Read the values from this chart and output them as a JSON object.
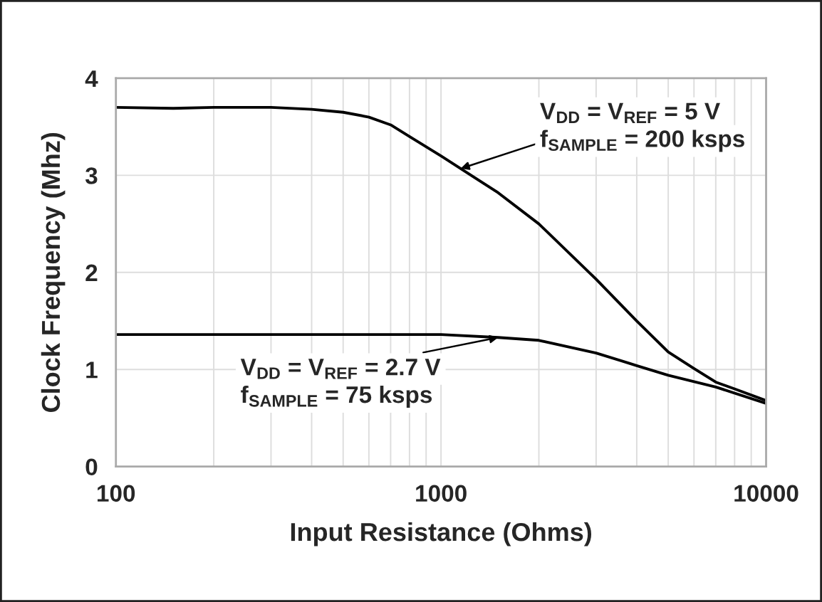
{
  "chart_data": {
    "type": "line",
    "xlabel": "Input Resistance (Ohms)",
    "ylabel": "Clock Frequency (Mhz)",
    "log": "x",
    "xlim": [
      100,
      10000
    ],
    "ylim": [
      0,
      4
    ],
    "xticks": [
      100,
      {
        "value": 200,
        "label": null
      },
      {
        "value": 300,
        "label": null
      },
      {
        "value": 400,
        "label": null
      },
      {
        "value": 500,
        "label": null
      },
      {
        "value": 600,
        "label": null
      },
      {
        "value": 700,
        "label": null
      },
      {
        "value": 800,
        "label": null
      },
      {
        "value": 900,
        "label": null
      },
      1000,
      {
        "value": 2000,
        "label": null
      },
      {
        "value": 3000,
        "label": null
      },
      {
        "value": 4000,
        "label": null
      },
      {
        "value": 5000,
        "label": null
      },
      {
        "value": 6000,
        "label": null
      },
      {
        "value": 7000,
        "label": null
      },
      {
        "value": 8000,
        "label": null
      },
      {
        "value": 9000,
        "label": null
      },
      10000
    ],
    "yticks": [
      0,
      1,
      2,
      3,
      4
    ],
    "grid": true,
    "marker": "none",
    "line_style": "solid",
    "series": [
      {
        "color": "#000000",
        "x": [
          100,
          150,
          200,
          300,
          400,
          500,
          600,
          700,
          800,
          1000,
          1500,
          2000,
          3000,
          4000,
          5000,
          6000,
          7000,
          8000,
          10000
        ],
        "values": [
          3.7,
          3.69,
          3.7,
          3.7,
          3.68,
          3.65,
          3.6,
          3.52,
          3.4,
          3.2,
          2.82,
          2.5,
          1.93,
          1.5,
          1.18,
          1.01,
          0.87,
          0.8,
          0.68
        ]
      },
      {
        "color": "#000000",
        "x": [
          100,
          200,
          500,
          1000,
          1500,
          2000,
          3000,
          4000,
          5000,
          7000,
          10000
        ],
        "values": [
          1.36,
          1.36,
          1.36,
          1.36,
          1.33,
          1.3,
          1.17,
          1.04,
          0.94,
          0.82,
          0.65
        ]
      }
    ],
    "annotations": [
      {
        "text": "V$_{DD}$ = V$_{REF}$ = 5 V",
        "x": 1150,
        "y": 3.07
      },
      "f$_{SAMPLE}$ = 200 ksps",
      {
        "text": "V$_{DD}$ = V$_{REF}$ = 2.7 V",
        "x": 1500,
        "y": 1.33
      },
      "f$_{SAMPLE}$ = 75 ksps"
    ]
  }
}
